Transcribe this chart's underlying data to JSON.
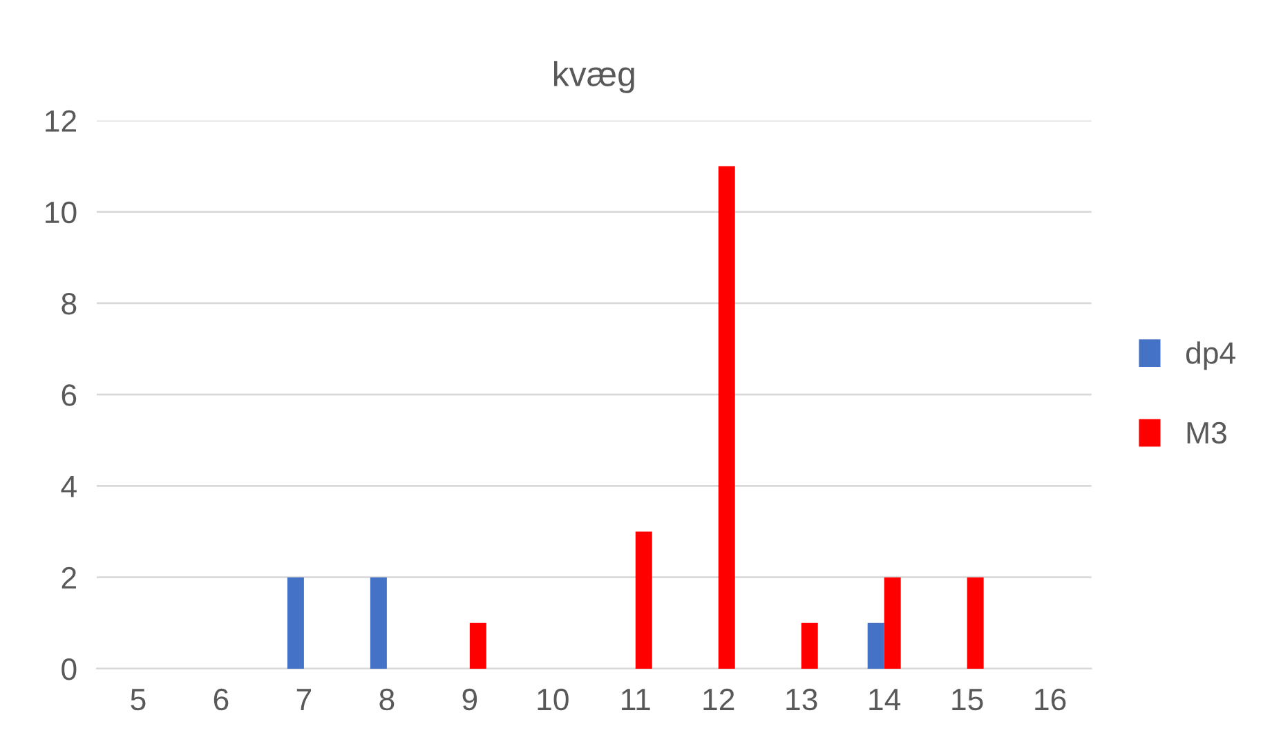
{
  "chart_data": {
    "type": "bar",
    "title": "kvæg",
    "categories": [
      "5",
      "6",
      "7",
      "8",
      "9",
      "10",
      "11",
      "12",
      "13",
      "14",
      "15",
      "16"
    ],
    "series": [
      {
        "name": "dp4",
        "color": "#4472c4",
        "values": [
          null,
          null,
          2,
          2,
          null,
          null,
          null,
          null,
          null,
          1,
          null,
          null
        ]
      },
      {
        "name": "M3",
        "color": "#ff0000",
        "values": [
          null,
          null,
          null,
          null,
          1,
          null,
          3,
          11,
          1,
          2,
          2,
          null
        ]
      }
    ],
    "ylim": [
      0,
      12
    ],
    "yticks": [
      0,
      2,
      4,
      6,
      8,
      10,
      12
    ],
    "grid": "y",
    "legend": "right"
  }
}
